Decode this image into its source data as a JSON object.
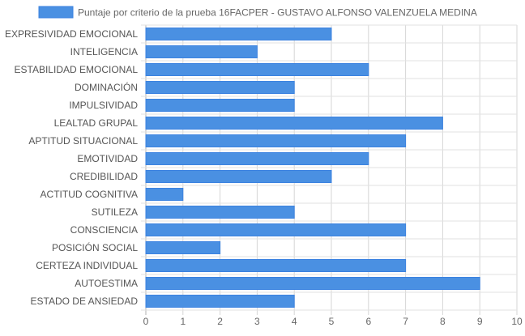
{
  "chart_data": {
    "type": "bar",
    "orientation": "horizontal",
    "categories": [
      "EXPRESIVIDAD EMOCIONAL",
      "INTELIGENCIA",
      "ESTABILIDAD EMOCIONAL",
      "DOMINACIÓN",
      "IMPULSIVIDAD",
      "LEALTAD GRUPAL",
      "APTITUD SITUACIONAL",
      "EMOTIVIDAD",
      "CREDIBILIDAD",
      "ACTITUD COGNITIVA",
      "SUTILEZA",
      "CONSCIENCIA",
      "POSICIÓN SOCIAL",
      "CERTEZA INDIVIDUAL",
      "AUTOESTIMA",
      "ESTADO DE ANSIEDAD"
    ],
    "series": [
      {
        "name": "Puntaje por criterio de la prueba 16FACPER - GUSTAVO ALFONSO VALENZUELA MEDINA",
        "values": [
          5,
          3,
          6,
          4,
          4,
          8,
          7,
          6,
          5,
          1,
          4,
          7,
          2,
          7,
          9,
          4
        ],
        "color": "#4a90e2",
        "border_color": "#3b82e0"
      }
    ],
    "xlim": [
      0,
      10
    ],
    "x_ticks": [
      "0",
      "1",
      "2",
      "3",
      "4",
      "5",
      "6",
      "7",
      "8",
      "9",
      "10"
    ],
    "grid": true,
    "legend": "top-center"
  }
}
